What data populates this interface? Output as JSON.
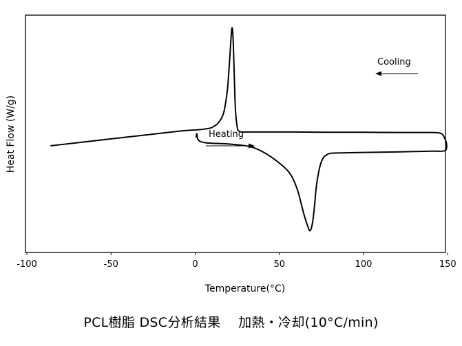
{
  "chart_data": {
    "type": "line",
    "title": "",
    "xlabel": "Temperature(°C)",
    "ylabel": "Heat Flow (W/g)",
    "xlim": [
      -100,
      150
    ],
    "xticks": [
      -100,
      -50,
      0,
      50,
      100,
      150
    ],
    "xtick_labels": [
      "-100",
      "-50",
      "0",
      "50",
      "100",
      "150"
    ],
    "yticks_shown": false,
    "grid": false,
    "legend": "none",
    "line_color": "#000000",
    "series": [
      {
        "x": [
          -86,
          -70,
          -50,
          -30,
          -10,
          -5,
          0,
          5,
          10,
          14,
          17,
          19,
          20,
          21,
          21.5,
          22,
          22.5,
          23,
          23.5,
          24,
          25,
          26,
          28,
          30,
          40,
          60,
          80,
          100,
          120,
          140,
          145,
          147,
          148,
          149,
          149.5
        ],
        "y": [
          -0.32,
          -0.2,
          -0.05,
          0.1,
          0.25,
          0.28,
          0.3,
          0.33,
          0.4,
          0.6,
          1.0,
          1.8,
          2.6,
          3.6,
          4.1,
          4.3,
          3.9,
          2.9,
          1.8,
          1.0,
          0.4,
          0.25,
          0.22,
          0.22,
          0.22,
          0.22,
          0.21,
          0.21,
          0.2,
          0.2,
          0.18,
          0.12,
          0.0,
          -0.15,
          -0.35
        ]
      },
      {
        "x": [
          0.5,
          1,
          1.5,
          3,
          6,
          10,
          20,
          30,
          35,
          40,
          45,
          50,
          55,
          58,
          61,
          63,
          65,
          67,
          68,
          69,
          70,
          71,
          72,
          74,
          76,
          78,
          80,
          85,
          100,
          120,
          140,
          148,
          149.5
        ],
        "y": [
          0.0,
          0.15,
          -0.05,
          -0.15,
          -0.2,
          -0.22,
          -0.25,
          -0.32,
          -0.4,
          -0.55,
          -0.75,
          -1.0,
          -1.3,
          -1.6,
          -2.1,
          -2.6,
          -3.1,
          -3.5,
          -3.65,
          -3.55,
          -3.2,
          -2.6,
          -1.9,
          -1.15,
          -0.8,
          -0.68,
          -0.62,
          -0.6,
          -0.58,
          -0.56,
          -0.53,
          -0.52,
          -0.35
        ]
      }
    ],
    "ylim": [
      -4.5,
      4.8
    ],
    "annotations": [
      {
        "text": "Cooling",
        "arrow_direction": "left"
      },
      {
        "text": "Heating",
        "arrow_direction": "right"
      }
    ]
  },
  "caption": "PCL樹脂 DSC分析結果　 加熱・冷却(10°C/min)"
}
